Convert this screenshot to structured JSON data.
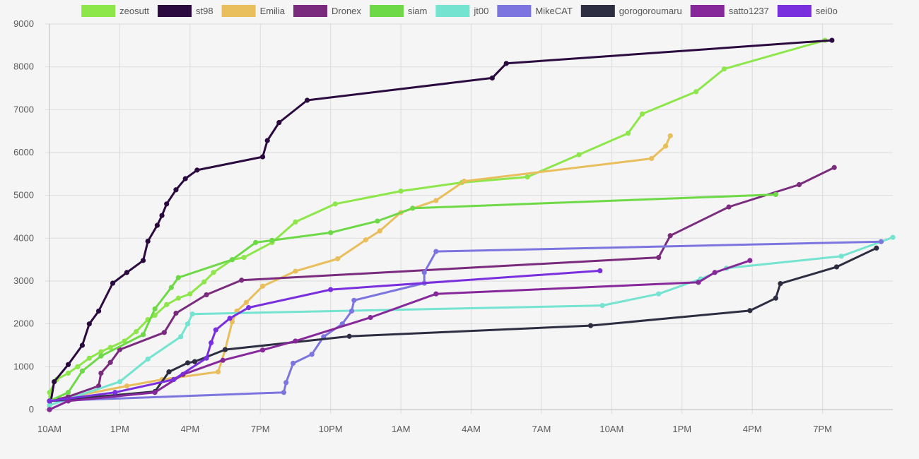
{
  "chart_data": {
    "type": "line",
    "legend_position": "top",
    "grid": true,
    "x_ticks": [
      "10AM",
      "1PM",
      "4PM",
      "7PM",
      "10PM",
      "1AM",
      "4AM",
      "7AM",
      "10AM",
      "1PM",
      "4PM",
      "7PM"
    ],
    "x_tick_hours": [
      0,
      3,
      6,
      9,
      12,
      15,
      18,
      21,
      24,
      27,
      30,
      33
    ],
    "xlim_hours": [
      0,
      36
    ],
    "y_ticks": [
      0,
      1000,
      2000,
      3000,
      4000,
      5000,
      6000,
      7000,
      8000,
      9000
    ],
    "ylim": [
      0,
      9000
    ],
    "series": [
      {
        "name": "zeosutt",
        "color": "#8de64a",
        "points": [
          [
            0,
            200
          ],
          [
            0,
            400
          ],
          [
            0.3,
            700
          ],
          [
            0.8,
            850
          ],
          [
            1.2,
            1000
          ],
          [
            1.7,
            1200
          ],
          [
            2.2,
            1350
          ],
          [
            2.6,
            1450
          ],
          [
            3.2,
            1600
          ],
          [
            3.7,
            1820
          ],
          [
            4.2,
            2100
          ],
          [
            4.5,
            2200
          ],
          [
            5.0,
            2450
          ],
          [
            5.5,
            2600
          ],
          [
            6,
            2700
          ],
          [
            6.6,
            2980
          ],
          [
            7,
            3200
          ],
          [
            7.8,
            3500
          ],
          [
            8.3,
            3550
          ],
          [
            9.5,
            3900
          ],
          [
            10.5,
            4380
          ],
          [
            12.2,
            4800
          ],
          [
            15,
            5100
          ],
          [
            17.6,
            5300
          ],
          [
            20.4,
            5430
          ],
          [
            22.6,
            5950
          ],
          [
            24.7,
            6450
          ],
          [
            25.3,
            6900
          ],
          [
            27.6,
            7420
          ],
          [
            28.8,
            7950
          ],
          [
            33.1,
            8620
          ]
        ]
      },
      {
        "name": "st98",
        "color": "#2b0a40",
        "points": [
          [
            0,
            0
          ],
          [
            0.2,
            650
          ],
          [
            0.8,
            1050
          ],
          [
            1.4,
            1500
          ],
          [
            1.7,
            2000
          ],
          [
            2.1,
            2300
          ],
          [
            2.7,
            2950
          ],
          [
            3.3,
            3200
          ],
          [
            4.0,
            3480
          ],
          [
            4.2,
            3930
          ],
          [
            4.6,
            4300
          ],
          [
            4.8,
            4530
          ],
          [
            5.0,
            4800
          ],
          [
            5.4,
            5130
          ],
          [
            5.8,
            5390
          ],
          [
            6.3,
            5590
          ],
          [
            9.1,
            5900
          ],
          [
            9.3,
            6280
          ],
          [
            9.8,
            6700
          ],
          [
            11.0,
            7220
          ],
          [
            18.9,
            7740
          ],
          [
            19.5,
            8080
          ],
          [
            33.4,
            8620
          ]
        ]
      },
      {
        "name": "Emilia",
        "color": "#e9be5c",
        "points": [
          [
            0,
            200
          ],
          [
            3.3,
            550
          ],
          [
            4.8,
            700
          ],
          [
            7.2,
            880
          ],
          [
            7.5,
            1400
          ],
          [
            7.8,
            2050
          ],
          [
            8.0,
            2300
          ],
          [
            8.4,
            2500
          ],
          [
            9.1,
            2880
          ],
          [
            10.5,
            3230
          ],
          [
            12.3,
            3520
          ],
          [
            13.5,
            3960
          ],
          [
            14.1,
            4170
          ],
          [
            15.0,
            4600
          ],
          [
            16.5,
            4880
          ],
          [
            17.7,
            5330
          ],
          [
            25.7,
            5860
          ],
          [
            26.3,
            6150
          ],
          [
            26.5,
            6390
          ]
        ]
      },
      {
        "name": "Dronex",
        "color": "#7a2b7d",
        "points": [
          [
            0,
            200
          ],
          [
            0.8,
            300
          ],
          [
            2.1,
            550
          ],
          [
            2.2,
            850
          ],
          [
            2.6,
            1100
          ],
          [
            3.0,
            1400
          ],
          [
            4.9,
            1800
          ],
          [
            5.4,
            2250
          ],
          [
            6.7,
            2680
          ],
          [
            8.2,
            3020
          ],
          [
            26.0,
            3550
          ],
          [
            26.5,
            4060
          ],
          [
            29.0,
            4730
          ],
          [
            32.0,
            5250
          ],
          [
            33.5,
            5650
          ]
        ]
      },
      {
        "name": "siam",
        "color": "#6ed946",
        "points": [
          [
            0,
            200
          ],
          [
            0.8,
            400
          ],
          [
            1.4,
            900
          ],
          [
            2.2,
            1250
          ],
          [
            4.0,
            1750
          ],
          [
            4.5,
            2350
          ],
          [
            5.2,
            2850
          ],
          [
            5.5,
            3080
          ],
          [
            7.8,
            3500
          ],
          [
            8.8,
            3900
          ],
          [
            9.5,
            3950
          ],
          [
            12.0,
            4130
          ],
          [
            14.0,
            4400
          ],
          [
            15.5,
            4700
          ],
          [
            31.0,
            5020
          ]
        ]
      },
      {
        "name": "jt00",
        "color": "#74e3cf",
        "points": [
          [
            0,
            100
          ],
          [
            3.0,
            650
          ],
          [
            4.2,
            1180
          ],
          [
            5.6,
            1700
          ],
          [
            5.9,
            2000
          ],
          [
            6.1,
            2230
          ],
          [
            23.6,
            2430
          ],
          [
            26.0,
            2700
          ],
          [
            27.8,
            3050
          ],
          [
            28.9,
            3300
          ],
          [
            33.8,
            3580
          ],
          [
            36.0,
            4020
          ]
        ]
      },
      {
        "name": "MikeCAT",
        "color": "#7c74df",
        "points": [
          [
            0,
            200
          ],
          [
            10.0,
            400
          ],
          [
            10.1,
            630
          ],
          [
            10.4,
            1080
          ],
          [
            11.2,
            1290
          ],
          [
            11.7,
            1700
          ],
          [
            12.5,
            2000
          ],
          [
            12.9,
            2300
          ],
          [
            13.0,
            2550
          ],
          [
            16.0,
            2950
          ],
          [
            16.0,
            3200
          ],
          [
            16.5,
            3690
          ],
          [
            35.5,
            3920
          ]
        ]
      },
      {
        "name": "gorogoroumaru",
        "color": "#2e2e42",
        "points": [
          [
            0,
            200
          ],
          [
            4.5,
            420
          ],
          [
            5.1,
            880
          ],
          [
            5.9,
            1090
          ],
          [
            6.2,
            1120
          ],
          [
            7.5,
            1400
          ],
          [
            12.8,
            1710
          ],
          [
            23.1,
            1960
          ],
          [
            29.9,
            2310
          ],
          [
            31.0,
            2600
          ],
          [
            31.2,
            2940
          ],
          [
            33.6,
            3330
          ],
          [
            35.3,
            3770
          ]
        ]
      },
      {
        "name": "satto1237",
        "color": "#86289a",
        "points": [
          [
            0,
            0
          ],
          [
            0.8,
            200
          ],
          [
            4.5,
            400
          ],
          [
            5.7,
            820
          ],
          [
            7.4,
            1150
          ],
          [
            9.1,
            1390
          ],
          [
            10.5,
            1600
          ],
          [
            13.7,
            2150
          ],
          [
            16.5,
            2700
          ],
          [
            27.7,
            2970
          ],
          [
            28.4,
            3200
          ],
          [
            29.9,
            3480
          ]
        ]
      },
      {
        "name": "sei0o",
        "color": "#7a2fdf",
        "points": [
          [
            0,
            200
          ],
          [
            2.8,
            400
          ],
          [
            5.3,
            700
          ],
          [
            6.7,
            1200
          ],
          [
            6.9,
            1560
          ],
          [
            7.1,
            1860
          ],
          [
            7.7,
            2130
          ],
          [
            8.5,
            2380
          ],
          [
            12.0,
            2800
          ],
          [
            23.5,
            3240
          ]
        ]
      }
    ]
  }
}
